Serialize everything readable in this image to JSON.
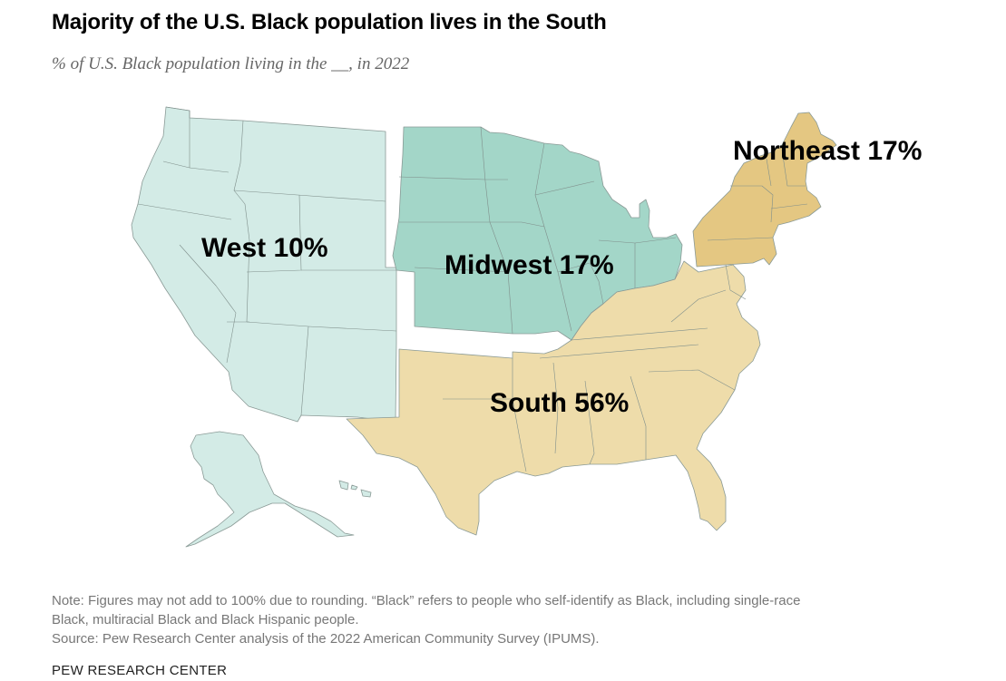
{
  "title": "Majority of the U.S. Black population lives in the South",
  "subtitle": "% of U.S. Black population living in the __, in 2022",
  "regions": {
    "west": {
      "label": "West 10%",
      "name": "West",
      "percent": 10,
      "color": "#d3ebe6"
    },
    "midwest": {
      "label": "Midwest 17%",
      "name": "Midwest",
      "percent": 17,
      "color": "#a3d6c8"
    },
    "northeast": {
      "label": "Northeast 17%",
      "name": "Northeast",
      "percent": 17,
      "color": "#e4c782"
    },
    "south": {
      "label": "South 56%",
      "name": "South",
      "percent": 56,
      "color": "#eedcaa"
    }
  },
  "note_line1": "Note: Figures may not add to 100% due to rounding. “Black” refers to people who self-identify as Black, including single-race",
  "note_line2": "Black, multiracial Black and Black Hispanic people.",
  "source": "Source: Pew Research Center analysis of the 2022 American Community Survey (IPUMS).",
  "credit": "PEW RESEARCH CENTER"
}
